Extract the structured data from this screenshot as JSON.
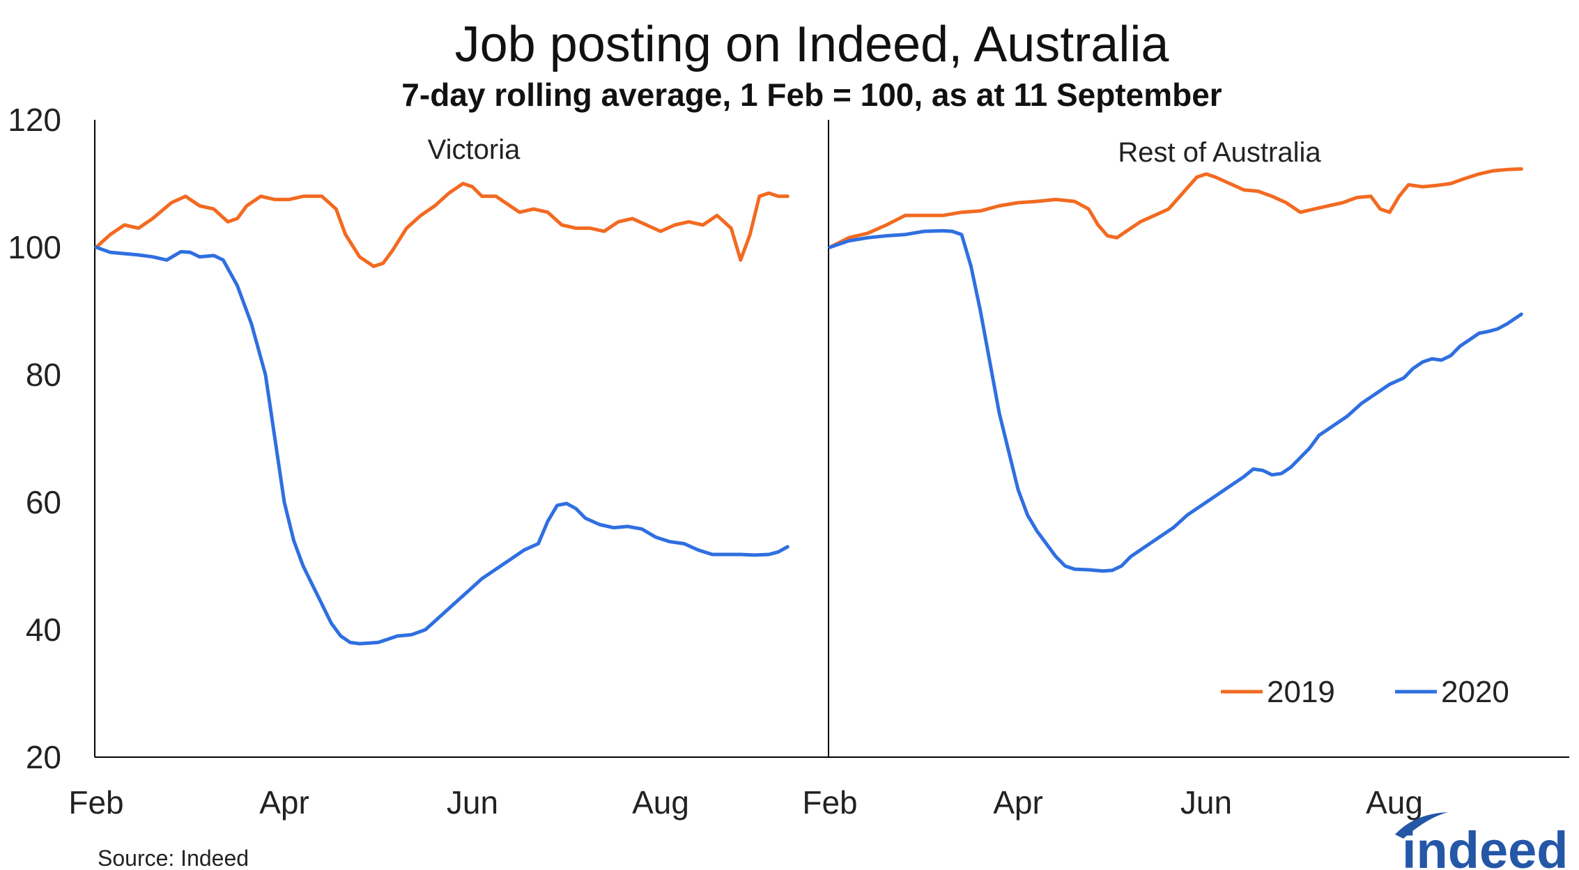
{
  "chart_data": {
    "type": "line",
    "title": "Job posting on Indeed, Australia",
    "subtitle": "7-day rolling average, 1 Feb = 100, as at 11 September",
    "ylim": [
      20,
      120
    ],
    "yticks": [
      20,
      40,
      60,
      80,
      100,
      120
    ],
    "x_tick_labels": [
      "Feb",
      "Apr",
      "Jun",
      "Aug"
    ],
    "x_tick_months": [
      0,
      2,
      4,
      6
    ],
    "x_range_months": [
      0,
      7.35
    ],
    "source": "Source: Indeed",
    "legend": {
      "placement": "bottom-right",
      "entries": [
        {
          "label": "2019",
          "color": "#f26a21"
        },
        {
          "label": "2020",
          "color": "#2f6fe0"
        }
      ]
    },
    "colors": {
      "2019": "#f26a21",
      "2020": "#2f6fe0"
    },
    "panels": [
      {
        "name": "Victoria",
        "series": [
          {
            "name": "2019",
            "points": [
              [
                0,
                100
              ],
              [
                0.15,
                102
              ],
              [
                0.3,
                103.5
              ],
              [
                0.45,
                103
              ],
              [
                0.6,
                104.5
              ],
              [
                0.8,
                107
              ],
              [
                0.95,
                108
              ],
              [
                1.1,
                106.5
              ],
              [
                1.25,
                106
              ],
              [
                1.4,
                104
              ],
              [
                1.5,
                104.5
              ],
              [
                1.6,
                106.5
              ],
              [
                1.75,
                108
              ],
              [
                1.9,
                107.5
              ],
              [
                2.05,
                107.5
              ],
              [
                2.2,
                108
              ],
              [
                2.4,
                108
              ],
              [
                2.55,
                106
              ],
              [
                2.65,
                102
              ],
              [
                2.8,
                98.5
              ],
              [
                2.95,
                97
              ],
              [
                3.05,
                97.5
              ],
              [
                3.15,
                99.5
              ],
              [
                3.3,
                103
              ],
              [
                3.45,
                105
              ],
              [
                3.6,
                106.5
              ],
              [
                3.75,
                108.5
              ],
              [
                3.9,
                110
              ],
              [
                4.0,
                109.5
              ],
              [
                4.1,
                108
              ],
              [
                4.25,
                108
              ],
              [
                4.4,
                106.5
              ],
              [
                4.5,
                105.5
              ],
              [
                4.65,
                106
              ],
              [
                4.8,
                105.5
              ],
              [
                4.95,
                103.5
              ],
              [
                5.1,
                103
              ],
              [
                5.25,
                103
              ],
              [
                5.4,
                102.5
              ],
              [
                5.55,
                104
              ],
              [
                5.7,
                104.5
              ],
              [
                5.85,
                103.5
              ],
              [
                6.0,
                102.5
              ],
              [
                6.15,
                103.5
              ],
              [
                6.3,
                104
              ],
              [
                6.45,
                103.5
              ],
              [
                6.6,
                105
              ],
              [
                6.75,
                103
              ],
              [
                6.85,
                98
              ],
              [
                6.95,
                102
              ],
              [
                7.05,
                108
              ],
              [
                7.15,
                108.5
              ],
              [
                7.25,
                108
              ],
              [
                7.35,
                108
              ]
            ]
          },
          {
            "name": "2020",
            "points": [
              [
                0,
                100
              ],
              [
                0.15,
                99.2
              ],
              [
                0.3,
                99
              ],
              [
                0.45,
                98.8
              ],
              [
                0.6,
                98.5
              ],
              [
                0.75,
                98
              ],
              [
                0.9,
                99.3
              ],
              [
                1.0,
                99.2
              ],
              [
                1.1,
                98.5
              ],
              [
                1.25,
                98.7
              ],
              [
                1.35,
                98
              ],
              [
                1.5,
                94
              ],
              [
                1.65,
                88
              ],
              [
                1.8,
                80
              ],
              [
                1.9,
                70
              ],
              [
                2.0,
                60
              ],
              [
                2.1,
                54
              ],
              [
                2.2,
                50
              ],
              [
                2.3,
                47
              ],
              [
                2.4,
                44
              ],
              [
                2.5,
                41
              ],
              [
                2.6,
                39
              ],
              [
                2.7,
                38
              ],
              [
                2.8,
                37.8
              ],
              [
                2.9,
                37.9
              ],
              [
                3.0,
                38
              ],
              [
                3.1,
                38.5
              ],
              [
                3.2,
                39
              ],
              [
                3.35,
                39.2
              ],
              [
                3.5,
                40
              ],
              [
                3.65,
                42
              ],
              [
                3.8,
                44
              ],
              [
                3.95,
                46
              ],
              [
                4.1,
                48
              ],
              [
                4.25,
                49.5
              ],
              [
                4.4,
                51
              ],
              [
                4.55,
                52.5
              ],
              [
                4.7,
                53.5
              ],
              [
                4.8,
                57
              ],
              [
                4.9,
                59.5
              ],
              [
                5.0,
                59.8
              ],
              [
                5.1,
                59
              ],
              [
                5.2,
                57.5
              ],
              [
                5.35,
                56.5
              ],
              [
                5.5,
                56
              ],
              [
                5.65,
                56.2
              ],
              [
                5.8,
                55.8
              ],
              [
                5.95,
                54.5
              ],
              [
                6.1,
                53.8
              ],
              [
                6.25,
                53.5
              ],
              [
                6.4,
                52.5
              ],
              [
                6.55,
                51.8
              ],
              [
                6.7,
                51.8
              ],
              [
                6.85,
                51.8
              ],
              [
                7.0,
                51.7
              ],
              [
                7.15,
                51.8
              ],
              [
                7.25,
                52.2
              ],
              [
                7.35,
                53
              ]
            ]
          }
        ]
      },
      {
        "name": "Rest of Australia",
        "series": [
          {
            "name": "2019",
            "points": [
              [
                0,
                100
              ],
              [
                0.2,
                101.5
              ],
              [
                0.4,
                102.2
              ],
              [
                0.6,
                103.5
              ],
              [
                0.8,
                105
              ],
              [
                1.0,
                105
              ],
              [
                1.2,
                105
              ],
              [
                1.4,
                105.5
              ],
              [
                1.6,
                105.7
              ],
              [
                1.8,
                106.5
              ],
              [
                2.0,
                107
              ],
              [
                2.2,
                107.2
              ],
              [
                2.4,
                107.5
              ],
              [
                2.6,
                107.2
              ],
              [
                2.75,
                106
              ],
              [
                2.85,
                103.5
              ],
              [
                2.95,
                101.8
              ],
              [
                3.05,
                101.5
              ],
              [
                3.15,
                102.5
              ],
              [
                3.3,
                104
              ],
              [
                3.45,
                105
              ],
              [
                3.6,
                106
              ],
              [
                3.75,
                108.5
              ],
              [
                3.9,
                111
              ],
              [
                4.0,
                111.5
              ],
              [
                4.1,
                111
              ],
              [
                4.25,
                110
              ],
              [
                4.4,
                109
              ],
              [
                4.55,
                108.8
              ],
              [
                4.7,
                108
              ],
              [
                4.85,
                107
              ],
              [
                5.0,
                105.5
              ],
              [
                5.15,
                106
              ],
              [
                5.3,
                106.5
              ],
              [
                5.45,
                107
              ],
              [
                5.6,
                107.8
              ],
              [
                5.75,
                108
              ],
              [
                5.85,
                106
              ],
              [
                5.95,
                105.5
              ],
              [
                6.05,
                108
              ],
              [
                6.15,
                109.8
              ],
              [
                6.3,
                109.5
              ],
              [
                6.45,
                109.7
              ],
              [
                6.6,
                110
              ],
              [
                6.75,
                110.8
              ],
              [
                6.9,
                111.5
              ],
              [
                7.05,
                112
              ],
              [
                7.2,
                112.2
              ],
              [
                7.35,
                112.3
              ]
            ]
          },
          {
            "name": "2020",
            "points": [
              [
                0,
                100
              ],
              [
                0.2,
                101
              ],
              [
                0.4,
                101.5
              ],
              [
                0.6,
                101.8
              ],
              [
                0.8,
                102
              ],
              [
                1.0,
                102.5
              ],
              [
                1.2,
                102.6
              ],
              [
                1.3,
                102.5
              ],
              [
                1.4,
                102
              ],
              [
                1.5,
                97
              ],
              [
                1.6,
                90
              ],
              [
                1.7,
                82
              ],
              [
                1.8,
                74
              ],
              [
                1.9,
                68
              ],
              [
                2.0,
                62
              ],
              [
                2.1,
                58
              ],
              [
                2.2,
                55.5
              ],
              [
                2.3,
                53.5
              ],
              [
                2.4,
                51.5
              ],
              [
                2.5,
                50
              ],
              [
                2.6,
                49.5
              ],
              [
                2.75,
                49.4
              ],
              [
                2.9,
                49.2
              ],
              [
                3.0,
                49.3
              ],
              [
                3.1,
                50
              ],
              [
                3.2,
                51.5
              ],
              [
                3.35,
                53
              ],
              [
                3.5,
                54.5
              ],
              [
                3.65,
                56
              ],
              [
                3.8,
                58
              ],
              [
                3.95,
                59.5
              ],
              [
                4.1,
                61
              ],
              [
                4.25,
                62.5
              ],
              [
                4.4,
                64
              ],
              [
                4.5,
                65.2
              ],
              [
                4.6,
                65
              ],
              [
                4.7,
                64.3
              ],
              [
                4.8,
                64.5
              ],
              [
                4.9,
                65.5
              ],
              [
                5.0,
                67
              ],
              [
                5.1,
                68.5
              ],
              [
                5.2,
                70.5
              ],
              [
                5.35,
                72
              ],
              [
                5.5,
                73.5
              ],
              [
                5.65,
                75.5
              ],
              [
                5.8,
                77
              ],
              [
                5.95,
                78.5
              ],
              [
                6.1,
                79.5
              ],
              [
                6.2,
                81
              ],
              [
                6.3,
                82
              ],
              [
                6.4,
                82.5
              ],
              [
                6.5,
                82.3
              ],
              [
                6.6,
                83
              ],
              [
                6.7,
                84.5
              ],
              [
                6.8,
                85.5
              ],
              [
                6.9,
                86.5
              ],
              [
                7.0,
                86.8
              ],
              [
                7.1,
                87.2
              ],
              [
                7.2,
                88
              ],
              [
                7.3,
                89
              ],
              [
                7.35,
                89.5
              ]
            ]
          }
        ]
      }
    ]
  }
}
